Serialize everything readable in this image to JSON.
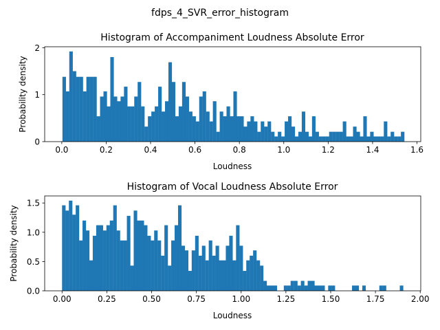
{
  "figure": {
    "suptitle": "fdps_4_SVR_error_histogram"
  },
  "colors": {
    "bar": "#1f77b4",
    "axes": "#000000",
    "background": "#ffffff"
  },
  "chart_data": [
    {
      "type": "bar",
      "title": "Histogram of Accompaniment Loudness Absolute Error",
      "xlabel": "Loudness",
      "ylabel": "Probability density",
      "xlim": [
        -0.077,
        1.617
      ],
      "ylim": [
        0,
        2.02
      ],
      "xticks": [
        0.0,
        0.2,
        0.4,
        0.6,
        0.8,
        1.0,
        1.2,
        1.4,
        1.6
      ],
      "xtick_labels": [
        "0.0",
        "0.2",
        "0.4",
        "0.6",
        "0.8",
        "1.0",
        "1.2",
        "1.4",
        "1.6"
      ],
      "yticks": [
        0,
        1,
        2
      ],
      "ytick_labels": [
        "0",
        "1",
        "2"
      ],
      "bin_start": 0.003,
      "bin_width": 0.0154,
      "values": [
        1.38,
        1.07,
        1.92,
        1.5,
        1.38,
        1.38,
        1.07,
        1.38,
        1.38,
        1.38,
        0.54,
        0.96,
        1.07,
        0.75,
        1.8,
        0.96,
        0.86,
        0.96,
        1.17,
        0.75,
        0.75,
        0.96,
        1.27,
        0.75,
        0.32,
        0.54,
        0.64,
        0.75,
        1.17,
        0.64,
        0.86,
        1.69,
        1.27,
        0.54,
        0.75,
        1.27,
        0.96,
        0.64,
        0.54,
        0.43,
        0.96,
        1.07,
        0.64,
        0.43,
        0.86,
        0.21,
        0.64,
        0.54,
        0.75,
        0.54,
        1.07,
        0.54,
        0.54,
        0.32,
        0.43,
        0.54,
        0.43,
        0.21,
        0.43,
        0.32,
        0.43,
        0.21,
        0.11,
        0.21,
        0.11,
        0.43,
        0.54,
        0.32,
        0.11,
        0.21,
        0.64,
        0.21,
        0.11,
        0.54,
        0.21,
        0.11,
        0.11,
        0.11,
        0.21,
        0.21,
        0.21,
        0.21,
        0.43,
        0.11,
        0.11,
        0.32,
        0.21,
        0.11,
        0.54,
        0.11,
        0.21,
        0.11,
        0.11,
        0.11,
        0.43,
        0.11,
        0.21,
        0.11,
        0.11,
        0.21
      ]
    },
    {
      "type": "bar",
      "title": "Histogram of Vocal Loudness Absolute Error",
      "xlabel": "Loudness",
      "ylabel": "Probability density",
      "xlim": [
        -0.097,
        2.003
      ],
      "ylim": [
        0,
        1.62
      ],
      "xticks": [
        0.0,
        0.25,
        0.5,
        0.75,
        1.0,
        1.25,
        1.5,
        1.75,
        2.0
      ],
      "xtick_labels": [
        "0.00",
        "0.25",
        "0.50",
        "0.75",
        "1.00",
        "1.25",
        "1.50",
        "1.75",
        "2.00"
      ],
      "yticks": [
        0.0,
        0.5,
        1.0,
        1.5
      ],
      "ytick_labels": [
        "0.0",
        "0.5",
        "1.0",
        "1.5"
      ],
      "bin_start": 0.0,
      "bin_width": 0.01905,
      "values": [
        1.46,
        1.37,
        1.54,
        1.3,
        1.46,
        0.86,
        1.2,
        1.03,
        0.52,
        0.94,
        1.12,
        1.12,
        1.03,
        1.12,
        1.2,
        1.46,
        1.03,
        0.86,
        0.86,
        1.28,
        0.43,
        1.37,
        1.2,
        1.2,
        1.12,
        0.94,
        0.86,
        1.03,
        0.86,
        0.6,
        1.12,
        0.43,
        0.86,
        1.12,
        1.46,
        0.77,
        0.69,
        0.34,
        0.69,
        0.94,
        0.6,
        0.77,
        0.52,
        0.86,
        0.6,
        0.77,
        0.52,
        0.52,
        0.77,
        0.94,
        0.52,
        1.12,
        0.77,
        0.34,
        0.52,
        0.6,
        0.69,
        0.52,
        0.43,
        0.17,
        0.09,
        0.09,
        0.09,
        0.0,
        0.0,
        0.09,
        0.09,
        0.17,
        0.17,
        0.09,
        0.17,
        0.09,
        0.17,
        0.17,
        0.09,
        0.09,
        0.09,
        0.0,
        0.09,
        0.09,
        0.0,
        0.0,
        0.0,
        0.0,
        0.0,
        0.09,
        0.09,
        0.0,
        0.09,
        0.0,
        0.0,
        0.0,
        0.0,
        0.09,
        0.09,
        0.0,
        0.0,
        0.0,
        0.0,
        0.09
      ]
    }
  ]
}
